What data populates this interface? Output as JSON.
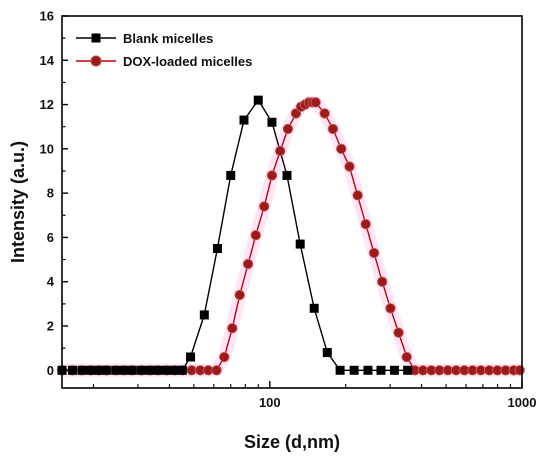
{
  "chart_data": {
    "type": "line",
    "xlabel": "Size (d,nm)",
    "ylabel": "Intensity (a.u.)",
    "xscale": "log",
    "xlim": [
      15,
      1000
    ],
    "ylim": [
      -0.8,
      16
    ],
    "x_ticks": [
      100,
      1000
    ],
    "x_tick_labels": [
      "100",
      "1000"
    ],
    "y_ticks": [
      0,
      2,
      4,
      6,
      8,
      10,
      12,
      14,
      16
    ],
    "y_tick_labels": [
      "0",
      "2",
      "4",
      "6",
      "8",
      "10",
      "12",
      "14",
      "16"
    ],
    "grid": false,
    "legend_position": "top-left",
    "series": [
      {
        "name": "Blank micelles",
        "marker": "square",
        "color": "#000000",
        "marker_color": "#000000",
        "x": [
          15,
          16.5,
          18,
          19.5,
          21,
          22.5,
          24.5,
          26.5,
          28.5,
          31,
          33.5,
          36,
          39,
          42,
          45,
          48.5,
          55,
          62,
          70,
          79,
          90,
          102,
          117,
          132,
          150,
          169,
          190,
          216,
          245,
          276,
          312,
          352
        ],
        "y": [
          0,
          0,
          0,
          0,
          0,
          0,
          0,
          0,
          0,
          0,
          0,
          0,
          0,
          0,
          0,
          0.6,
          2.5,
          5.5,
          8.8,
          11.3,
          12.2,
          11.2,
          8.8,
          5.7,
          2.8,
          0.8,
          0,
          0,
          0,
          0,
          0,
          0
        ]
      },
      {
        "name": "DOX-loaded micelles",
        "marker": "circle",
        "color": "#c40000",
        "marker_color": "#9c1a1a",
        "x": [
          15,
          16.5,
          18,
          19.5,
          21,
          22.5,
          24.5,
          26.5,
          28.5,
          31,
          33.5,
          36,
          39,
          42,
          45,
          49,
          53,
          57,
          61.5,
          66,
          71,
          76,
          82,
          88,
          95,
          102,
          110,
          118,
          127,
          133,
          138,
          143,
          148,
          152,
          165,
          178,
          192,
          207,
          223,
          240,
          259,
          279,
          301,
          324,
          349,
          376,
          405,
          437,
          471,
          508,
          548,
          591,
          637,
          687,
          741,
          799,
          861,
          928,
          980
        ],
        "y": [
          0,
          0,
          0,
          0,
          0,
          0,
          0,
          0,
          0,
          0,
          0,
          0,
          0,
          0,
          0,
          0,
          0,
          0,
          0,
          0.6,
          1.9,
          3.4,
          4.8,
          6.1,
          7.4,
          8.8,
          9.9,
          10.9,
          11.6,
          11.9,
          12.0,
          12.1,
          12.1,
          12.1,
          11.6,
          10.9,
          10.0,
          9.2,
          7.9,
          6.6,
          5.3,
          4.0,
          2.8,
          1.7,
          0.6,
          0,
          0,
          0,
          0,
          0,
          0,
          0,
          0,
          0,
          0,
          0,
          0,
          0,
          0
        ]
      }
    ]
  }
}
